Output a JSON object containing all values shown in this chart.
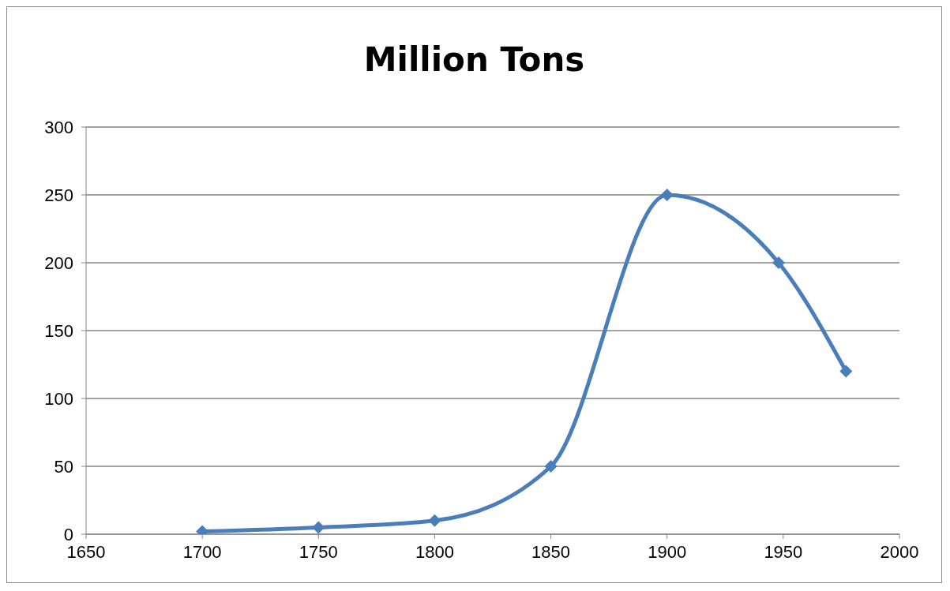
{
  "chart_data": {
    "type": "line",
    "title": "Million Tons",
    "x": [
      1700,
      1750,
      1800,
      1850,
      1900,
      1948,
      1977
    ],
    "series": [
      {
        "color": "#4a7ebb",
        "values": [
          2,
          5,
          10,
          50,
          250,
          200,
          120
        ]
      }
    ],
    "xlim": [
      1650,
      2000
    ],
    "xticks": [
      1650,
      1700,
      1750,
      1800,
      1850,
      1900,
      1950,
      2000
    ],
    "ylim": [
      0,
      300
    ],
    "yticks": [
      0,
      50,
      100,
      150,
      200,
      250,
      300
    ],
    "grid": "y",
    "legend": false,
    "marker": "diamond",
    "line_style": "solid"
  }
}
